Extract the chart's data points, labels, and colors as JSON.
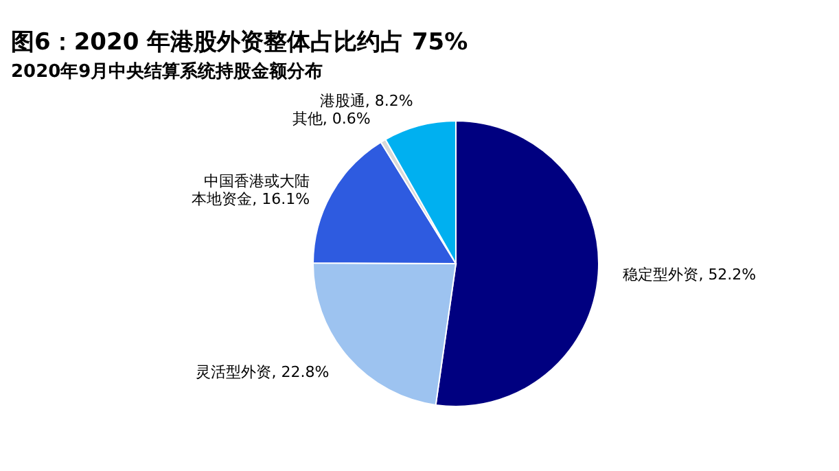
{
  "chart_data": {
    "type": "pie",
    "title": "图6：2020 年港股外资整体占比约占 75%",
    "subtitle": "2020年9月中央结算系统持股金额分布",
    "categories": [
      "稳定型外资",
      "灵活型外资",
      "中国香港或大陆本地资金",
      "其他",
      "港股通"
    ],
    "values": [
      52.2,
      22.8,
      16.1,
      0.6,
      8.2
    ],
    "colors": [
      "#000080",
      "#9dc3f0",
      "#2e5be0",
      "#d9d9d9",
      "#00b0f0"
    ],
    "value_labels": [
      "52.2%",
      "22.8%",
      "16.1%",
      "0.6%",
      "8.2%"
    ],
    "legend": false
  }
}
